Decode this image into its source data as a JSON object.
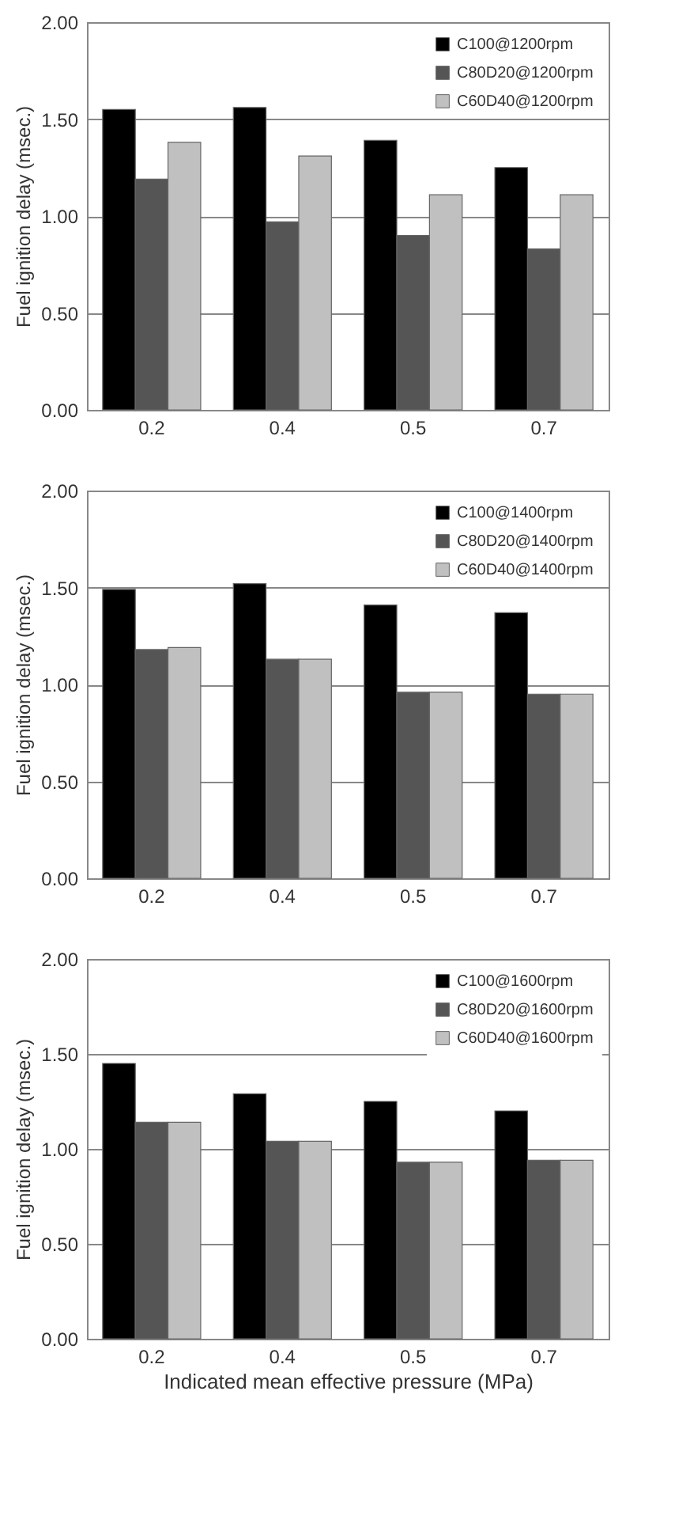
{
  "chart_data": [
    {
      "type": "bar",
      "ylabel": "Fuel ignition delay (msec.)",
      "categories": [
        "0.2",
        "0.4",
        "0.5",
        "0.7"
      ],
      "series": [
        {
          "name": "C100@1200rpm",
          "color": "#000000",
          "values": [
            1.55,
            1.56,
            1.39,
            1.25
          ]
        },
        {
          "name": "C80D20@1200rpm",
          "color": "#555555",
          "values": [
            1.19,
            0.97,
            0.9,
            0.83
          ]
        },
        {
          "name": "C60D40@1200rpm",
          "color": "#c0c0c0",
          "values": [
            1.38,
            1.31,
            1.11,
            1.11
          ]
        }
      ],
      "ylim": [
        0,
        2
      ],
      "yticks": [
        {
          "value": 0,
          "label": "0.00"
        },
        {
          "value": 0.5,
          "label": "0.50"
        },
        {
          "value": 1,
          "label": "1.00"
        },
        {
          "value": 1.5,
          "label": "1.50"
        },
        {
          "value": 2,
          "label": "2.00"
        }
      ],
      "grid": "y",
      "legend": "top right"
    },
    {
      "type": "bar",
      "ylabel": "Fuel ignition delay (msec.)",
      "categories": [
        "0.2",
        "0.4",
        "0.5",
        "0.7"
      ],
      "series": [
        {
          "name": "C100@1400rpm",
          "color": "#000000",
          "values": [
            1.49,
            1.52,
            1.41,
            1.37
          ]
        },
        {
          "name": "C80D20@1400rpm",
          "color": "#555555",
          "values": [
            1.18,
            1.13,
            0.96,
            0.95
          ]
        },
        {
          "name": "C60D40@1400rpm",
          "color": "#c0c0c0",
          "values": [
            1.19,
            1.13,
            0.96,
            0.95
          ]
        }
      ],
      "ylim": [
        0,
        2
      ],
      "yticks": [
        {
          "value": 0,
          "label": "0.00"
        },
        {
          "value": 0.5,
          "label": "0.50"
        },
        {
          "value": 1,
          "label": "1.00"
        },
        {
          "value": 1.5,
          "label": "1.50"
        },
        {
          "value": 2,
          "label": "2.00"
        }
      ],
      "grid": "y",
      "legend": "top right"
    },
    {
      "type": "bar",
      "xlabel": "Indicated mean effective pressure (MPa)",
      "ylabel": "Fuel ignition delay (msec.)",
      "categories": [
        "0.2",
        "0.4",
        "0.5",
        "0.7"
      ],
      "series": [
        {
          "name": "C100@1600rpm",
          "color": "#000000",
          "values": [
            1.45,
            1.29,
            1.25,
            1.2
          ]
        },
        {
          "name": "C80D20@1600rpm",
          "color": "#555555",
          "values": [
            1.14,
            1.04,
            0.93,
            0.94
          ]
        },
        {
          "name": "C60D40@1600rpm",
          "color": "#c0c0c0",
          "values": [
            1.14,
            1.04,
            0.93,
            0.94
          ]
        }
      ],
      "ylim": [
        0,
        2
      ],
      "yticks": [
        {
          "value": 0,
          "label": "0.00"
        },
        {
          "value": 0.5,
          "label": "0.50"
        },
        {
          "value": 1,
          "label": "1.00"
        },
        {
          "value": 1.5,
          "label": "1.50"
        },
        {
          "value": 2,
          "label": "2.00"
        }
      ],
      "grid": "y",
      "legend": "top right"
    }
  ]
}
